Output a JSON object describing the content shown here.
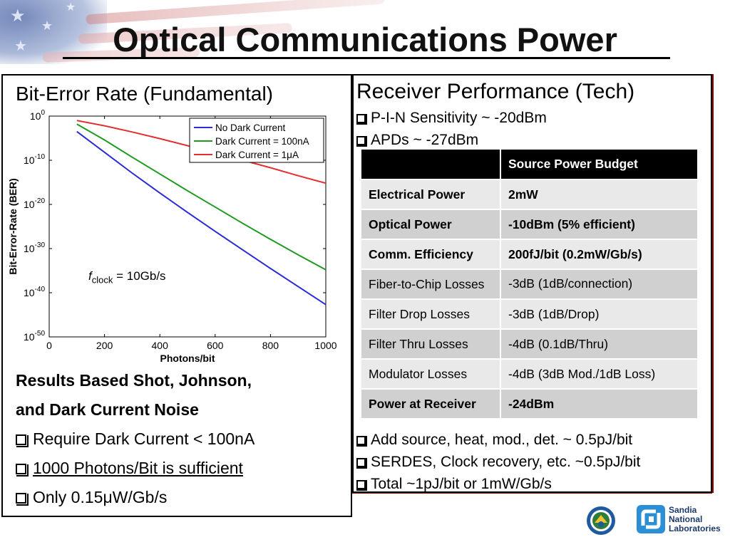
{
  "slide": {
    "title": "Optical Communications Power"
  },
  "left": {
    "heading": "Bit-Error Rate (Fundamental)",
    "annotation_f": "f",
    "annotation_sub": "clock",
    "annotation_rest": " = 10Gb/s",
    "results_line1": "Results Based Shot, Johnson,",
    "results_line2": "and Dark Current Noise",
    "bullets": [
      "Require Dark Current < 100nA",
      "1000 Photons/Bit is sufficient",
      "Only 0.15μW/Gb/s"
    ]
  },
  "right": {
    "heading": "Receiver Performance (Tech)",
    "top_bullets": [
      "P-I-N Sensitivity ~ -20dBm",
      "APDs ~ -27dBm"
    ],
    "table": {
      "header": [
        "",
        "Source Power Budget"
      ],
      "rows": [
        [
          "Electrical Power",
          "2mW"
        ],
        [
          "Optical Power",
          "-10dBm (5% efficient)"
        ],
        [
          "Comm. Efficiency",
          "200fJ/bit (0.2mW/Gb/s)"
        ],
        [
          "Fiber-to-Chip Losses",
          "-3dB (1dB/connection)"
        ],
        [
          "Filter Drop Losses",
          "-3dB (1dB/Drop)"
        ],
        [
          "Filter Thru Losses",
          "-4dB (0.1dB/Thru)"
        ],
        [
          "Modulator Losses",
          "-4dB (3dB Mod./1dB Loss)"
        ],
        [
          "Power at Receiver",
          "-24dBm"
        ]
      ]
    },
    "bottom_bullets": [
      "Add source, heat, mod., det. ~ 0.5pJ/bit",
      "SERDES, Clock recovery, etc. ~0.5pJ/bit",
      "Total ~1pJ/bit or 1mW/Gb/s"
    ]
  },
  "logos": {
    "sandia_line1": "Sandia",
    "sandia_line2": "National",
    "sandia_line3": "Laboratories"
  },
  "chart_data": {
    "type": "line",
    "title": "",
    "xlabel": "Photons/bit",
    "ylabel": "Bit-Error-Rate (BER)",
    "xlim": [
      0,
      1000
    ],
    "ylim_log10": [
      -50,
      0
    ],
    "log_y": true,
    "grid": false,
    "legend_position": "top-right",
    "x_ticks": [
      "0",
      "200",
      "400",
      "600",
      "800",
      "1000"
    ],
    "y_ticks": [
      {
        "base": "10",
        "exp": "0"
      },
      {
        "base": "10",
        "exp": "-10"
      },
      {
        "base": "10",
        "exp": "-20"
      },
      {
        "base": "10",
        "exp": "-30"
      },
      {
        "base": "10",
        "exp": "-40"
      },
      {
        "base": "10",
        "exp": "-50"
      }
    ],
    "series": [
      {
        "name": "No Dark Current",
        "color": "#2a2ad8",
        "x": [
          100,
          200,
          300,
          400,
          500,
          600,
          700,
          800,
          900,
          1000
        ],
        "log10_y": [
          -3.5,
          -8.2,
          -12.9,
          -17.4,
          -21.8,
          -26.1,
          -30.3,
          -34.5,
          -38.6,
          -42.7
        ]
      },
      {
        "name": "Dark Current = 100nA",
        "color": "#1e9a1e",
        "x": [
          100,
          200,
          300,
          400,
          500,
          600,
          700,
          800,
          900,
          1000
        ],
        "log10_y": [
          -1.8,
          -5.4,
          -9.3,
          -13.1,
          -16.9,
          -20.6,
          -24.3,
          -27.9,
          -31.4,
          -34.8
        ]
      },
      {
        "name": "Dark Current = 1μA",
        "color": "#e03030",
        "x": [
          100,
          200,
          300,
          400,
          500,
          600,
          700,
          800,
          900,
          1000
        ],
        "log10_y": [
          -1.0,
          -2.2,
          -3.6,
          -5.1,
          -6.7,
          -8.3,
          -10.0,
          -11.7,
          -13.5,
          -15.2
        ]
      }
    ]
  }
}
